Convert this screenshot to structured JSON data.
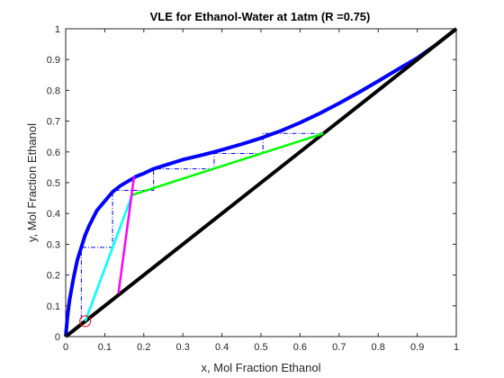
{
  "chart_data": {
    "type": "line",
    "title": "VLE for Ethanol-Water at 1atm (R =0.75)",
    "xlabel": "x, Mol Fraction Ethanol",
    "ylabel": "y, Mol Fraction Ethanol",
    "xlim": [
      0,
      1
    ],
    "ylim": [
      0,
      1
    ],
    "x_ticks": [
      "0",
      "0.1",
      "0.2",
      "0.3",
      "0.4",
      "0.5",
      "0.6",
      "0.7",
      "0.8",
      "0.9",
      "1"
    ],
    "y_ticks": [
      "0",
      "0.1",
      "0.2",
      "0.3",
      "0.4",
      "0.5",
      "0.6",
      "0.7",
      "0.8",
      "0.9",
      "1"
    ],
    "grid": false,
    "legend": "none",
    "colors": {
      "equilibrium": "#0000ff",
      "diagonal": "#000000",
      "rectifying": "#00ff00",
      "stripping": "#00ffff",
      "q_line": "#ff00ff",
      "stages": "#0000ff",
      "marker": "#ff0000"
    },
    "series": [
      {
        "role": "equilibrium",
        "x": [
          0,
          0.005,
          0.01,
          0.02,
          0.03,
          0.04,
          0.05,
          0.06,
          0.08,
          0.1,
          0.12,
          0.14,
          0.16,
          0.18,
          0.2,
          0.225,
          0.25,
          0.3,
          0.35,
          0.38,
          0.4,
          0.45,
          0.5,
          0.55,
          0.6,
          0.65,
          0.7,
          0.75,
          0.8,
          0.85,
          0.9,
          0.95,
          1.0
        ],
        "y": [
          0,
          0.07,
          0.12,
          0.19,
          0.25,
          0.29,
          0.33,
          0.36,
          0.41,
          0.44,
          0.47,
          0.49,
          0.505,
          0.52,
          0.53,
          0.545,
          0.555,
          0.575,
          0.59,
          0.6,
          0.607,
          0.625,
          0.645,
          0.668,
          0.695,
          0.725,
          0.758,
          0.793,
          0.83,
          0.868,
          0.905,
          0.95,
          1.0
        ]
      },
      {
        "role": "diagonal",
        "x": [
          0,
          1
        ],
        "y": [
          0,
          1
        ]
      },
      {
        "role": "rectifying",
        "x": [
          0.17,
          0.66
        ],
        "y": [
          0.46,
          0.66
        ]
      },
      {
        "role": "stripping",
        "x": [
          0.05,
          0.17
        ],
        "y": [
          0.05,
          0.46
        ]
      },
      {
        "role": "q_line",
        "x": [
          0.135,
          0.175
        ],
        "y": [
          0.14,
          0.52
        ]
      },
      {
        "role": "stages",
        "x": [
          0.66,
          0.505,
          0.505,
          0.38,
          0.38,
          0.225,
          0.225,
          0.12,
          0.12,
          0.04,
          0.04
        ],
        "y": [
          0.66,
          0.66,
          0.595,
          0.595,
          0.545,
          0.545,
          0.475,
          0.475,
          0.29,
          0.29,
          0.05
        ]
      }
    ],
    "marker": {
      "x": 0.05,
      "y": 0.05
    }
  }
}
